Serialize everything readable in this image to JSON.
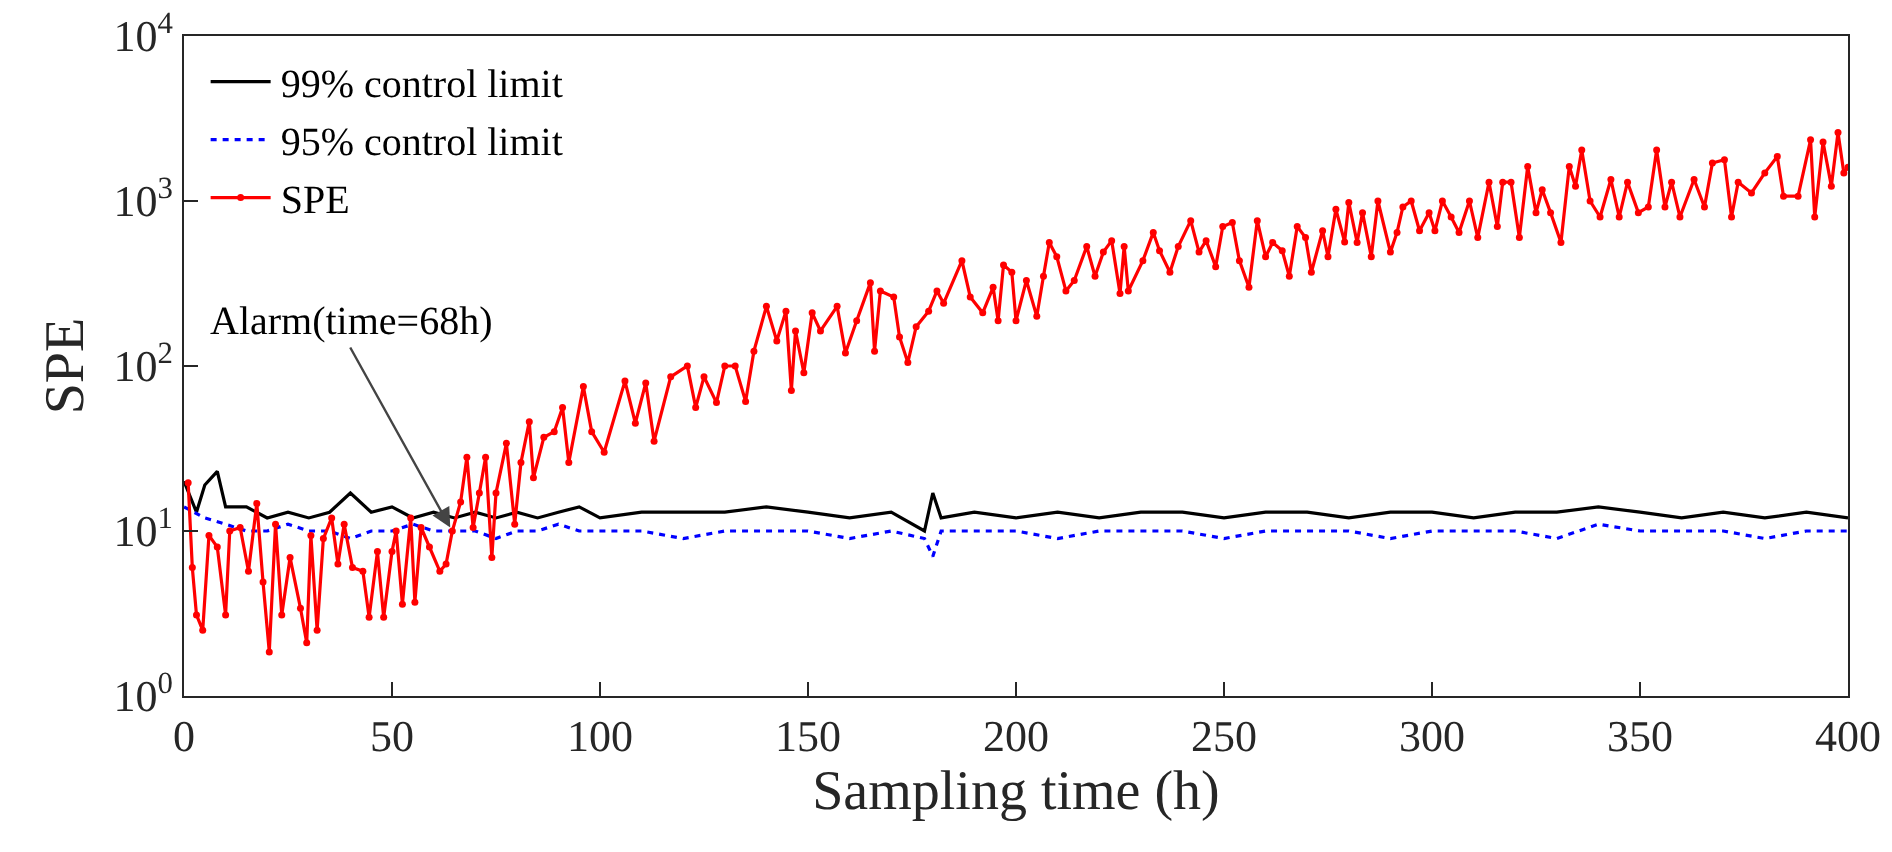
{
  "chart_data": {
    "type": "line",
    "xlabel": "Sampling time (h)",
    "ylabel": "SPE",
    "log": "y",
    "xlim": [
      0,
      400
    ],
    "xticks": [
      0,
      50,
      100,
      150,
      200,
      250,
      300,
      350,
      400
    ],
    "ylim": [
      1,
      10000
    ],
    "yticks": [
      {
        "value": 1,
        "label": "10$^{0}$"
      },
      {
        "value": 10,
        "label": "10$^{1}$"
      },
      {
        "value": 100,
        "label": "10$^{2}$"
      },
      {
        "value": 1000,
        "label": "10$^{3}$"
      },
      {
        "value": 10000,
        "label": "10$^{4}$"
      }
    ],
    "grid": false,
    "legend": "top left",
    "annotations": [
      {
        "text": "Alarm(time=68h)",
        "x": 64,
        "y": 10.5
      }
    ],
    "series": [
      {
        "name": "99% control limit",
        "color": "#000000",
        "line_style": "solid",
        "marker": "none",
        "x": [
          0,
          3,
          5,
          8,
          10,
          15,
          20,
          25,
          30,
          35,
          40,
          45,
          50,
          55,
          60,
          65,
          70,
          75,
          80,
          85,
          90,
          95,
          100,
          110,
          120,
          130,
          140,
          150,
          160,
          170,
          178,
          180,
          182,
          190,
          200,
          210,
          220,
          230,
          240,
          250,
          260,
          270,
          280,
          290,
          300,
          310,
          320,
          330,
          340,
          350,
          360,
          370,
          380,
          390,
          400
        ],
        "values": [
          20,
          13,
          19,
          23,
          14,
          14,
          12,
          13,
          12,
          13,
          17,
          13,
          14,
          12,
          13,
          12,
          13,
          12,
          13,
          12,
          13,
          14,
          12,
          13,
          13,
          13,
          14,
          13,
          12,
          13,
          10,
          17,
          12,
          13,
          12,
          13,
          12,
          13,
          13,
          12,
          13,
          13,
          12,
          13,
          13,
          12,
          13,
          13,
          14,
          13,
          12,
          13,
          12,
          13,
          12
        ]
      },
      {
        "name": "95% control limit",
        "color": "#0000ff",
        "line_style": "dotted",
        "marker": "none",
        "x": [
          0,
          5,
          10,
          15,
          20,
          25,
          30,
          35,
          40,
          45,
          50,
          55,
          60,
          65,
          70,
          75,
          80,
          85,
          90,
          95,
          100,
          110,
          120,
          130,
          140,
          150,
          160,
          170,
          178,
          180,
          182,
          190,
          200,
          210,
          220,
          230,
          240,
          250,
          260,
          270,
          280,
          290,
          300,
          310,
          320,
          330,
          340,
          350,
          360,
          370,
          380,
          390,
          400
        ],
        "values": [
          14,
          12,
          11,
          10,
          10,
          11,
          10,
          10,
          9,
          10,
          10,
          11,
          10,
          10,
          10,
          9,
          10,
          10,
          11,
          10,
          10,
          10,
          9,
          10,
          10,
          10,
          9,
          10,
          9,
          7,
          10,
          10,
          10,
          9,
          10,
          10,
          10,
          9,
          10,
          10,
          10,
          9,
          10,
          10,
          10,
          9,
          11,
          10,
          10,
          10,
          9,
          10,
          10
        ]
      },
      {
        "name": "SPE",
        "color": "#ff0000",
        "line_style": "solid",
        "marker": "circle",
        "x": [
          1,
          2,
          3,
          4.5,
          6,
          8,
          10,
          11,
          13.5,
          15.5,
          17.5,
          19,
          20.5,
          22,
          23.5,
          25.5,
          28,
          29.5,
          30.5,
          32,
          33.5,
          35.5,
          37,
          38.5,
          40.5,
          43,
          44.5,
          46.5,
          48,
          50,
          51,
          52.5,
          54.5,
          55.5,
          57,
          59,
          61.5,
          63,
          64.5,
          66.5,
          68,
          69.5,
          71,
          72.5,
          74,
          75,
          77.5,
          79.5,
          81,
          83,
          84,
          86.5,
          89,
          91,
          92.5,
          96,
          98,
          101,
          106,
          108.5,
          111,
          113,
          117,
          121,
          123,
          125,
          128,
          130,
          132.5,
          135,
          137,
          140,
          142.5,
          144.7,
          146,
          147,
          149,
          151,
          153,
          157,
          159,
          161.7,
          165,
          166,
          167.4,
          170.6,
          172,
          174,
          176,
          179,
          181,
          182.6,
          187,
          189,
          192,
          194.5,
          195.7,
          197,
          199,
          200,
          202.5,
          205,
          206.6,
          208,
          209.8,
          212,
          214,
          217,
          219,
          221,
          223,
          225,
          226,
          227,
          230.5,
          233,
          234.5,
          237,
          239,
          242,
          244,
          245.7,
          248,
          249.7,
          252,
          253.7,
          256,
          258,
          260,
          261.7,
          264,
          265.7,
          267.6,
          269.6,
          271,
          273.7,
          275,
          276.9,
          279,
          280,
          282,
          283.3,
          285.4,
          287,
          290,
          291.6,
          293,
          295,
          297,
          299.3,
          300.7,
          302.5,
          304.6,
          306.5,
          309,
          311,
          313.7,
          315.7,
          317,
          319,
          321,
          323,
          325,
          326.5,
          328.5,
          331,
          333,
          334.5,
          336,
          338,
          340.4,
          343,
          345,
          347,
          349.6,
          352,
          354,
          356,
          357.6,
          359.6,
          363,
          365.5,
          367.4,
          370.3,
          372,
          373.6,
          376.8,
          380,
          383,
          384.5,
          388,
          391,
          392,
          394,
          396,
          397.6,
          399,
          400
        ],
        "values": [
          19.6,
          6,
          3.1,
          2.5,
          9.4,
          8,
          3.1,
          10,
          10.5,
          5.7,
          14.7,
          4.9,
          1.85,
          11,
          3.1,
          6.9,
          3.4,
          2.1,
          9.4,
          2.5,
          9,
          12,
          6.3,
          11,
          6,
          5.7,
          3,
          7.5,
          3,
          7.5,
          10,
          3.6,
          12,
          3.7,
          10.5,
          8,
          5.7,
          6.3,
          10,
          15,
          28,
          10.5,
          17,
          28,
          6.9,
          17,
          34,
          11,
          26,
          46,
          21,
          37,
          40,
          56,
          26,
          75,
          40,
          30,
          81,
          45,
          79,
          35,
          86,
          100,
          56,
          86,
          60,
          100,
          100,
          61,
          123,
          230,
          142,
          215,
          71,
          163,
          91,
          210,
          163,
          230,
          120,
          188,
          320,
          123,
          285,
          262,
          150,
          105,
          173,
          215,
          285,
          240,
          435,
          262,
          210,
          300,
          188,
          410,
          370,
          188,
          330,
          200,
          350,
          560,
          460,
          285,
          330,
          530,
          350,
          490,
          575,
          275,
          530,
          285,
          435,
          645,
          500,
          370,
          530,
          760,
          490,
          575,
          400,
          700,
          740,
          435,
          300,
          760,
          460,
          560,
          500,
          350,
          700,
          600,
          370,
          660,
          460,
          890,
          565,
          980,
          560,
          850,
          460,
          1000,
          490,
          645,
          920,
          1000,
          660,
          850,
          660,
          1000,
          800,
          645,
          1000,
          600,
          1300,
          700,
          1300,
          1300,
          600,
          1620,
          850,
          1170,
          850,
          560,
          1620,
          1230,
          2040,
          1000,
          800,
          1350,
          800,
          1300,
          850,
          920,
          2040,
          920,
          1300,
          800,
          1350,
          920,
          1700,
          1780,
          800,
          1300,
          1120,
          1480,
          1860,
          1070,
          1070,
          2350,
          800,
          2280,
          1230,
          2600,
          1480,
          1600
        ]
      }
    ]
  }
}
